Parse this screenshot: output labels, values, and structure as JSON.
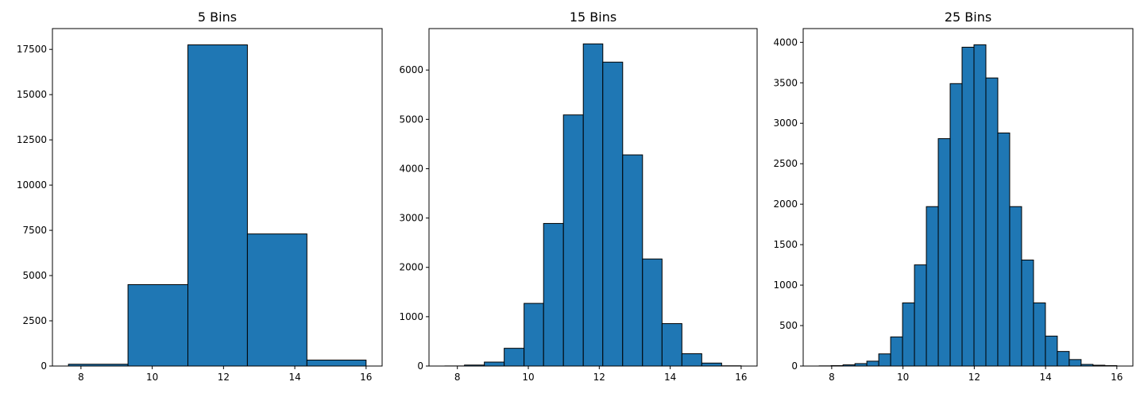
{
  "chart_data": [
    {
      "type": "bar",
      "title": "5 Bins",
      "xlabel": "",
      "ylabel": "",
      "bar_color": "#1f77b4",
      "edge_color": "#000000",
      "xlim": [
        7.2,
        16.45
      ],
      "ylim": [
        0,
        18650
      ],
      "xticks": [
        8,
        10,
        12,
        14,
        16
      ],
      "yticks": [
        0,
        2500,
        5000,
        7500,
        10000,
        12500,
        15000,
        17500
      ],
      "bin_edges": [
        7.65,
        9.32,
        11.0,
        12.67,
        14.34,
        16.0
      ],
      "values": [
        100,
        4500,
        17750,
        7300,
        330
      ]
    },
    {
      "type": "bar",
      "title": "15 Bins",
      "xlabel": "",
      "ylabel": "",
      "bar_color": "#1f77b4",
      "edge_color": "#000000",
      "xlim": [
        7.2,
        16.45
      ],
      "ylim": [
        0,
        6840
      ],
      "xticks": [
        8,
        10,
        12,
        14,
        16
      ],
      "yticks": [
        0,
        1000,
        2000,
        3000,
        4000,
        5000,
        6000
      ],
      "bin_edges": [
        7.65,
        8.2,
        8.76,
        9.32,
        9.88,
        10.43,
        10.99,
        11.55,
        12.1,
        12.66,
        13.22,
        13.77,
        14.33,
        14.89,
        15.45,
        16.0
      ],
      "values": [
        2,
        20,
        80,
        360,
        1270,
        2890,
        5090,
        6530,
        6160,
        4280,
        2170,
        860,
        250,
        60,
        5
      ]
    },
    {
      "type": "bar",
      "title": "25 Bins",
      "xlabel": "",
      "ylabel": "",
      "bar_color": "#1f77b4",
      "edge_color": "#000000",
      "xlim": [
        7.2,
        16.45
      ],
      "ylim": [
        0,
        4170
      ],
      "xticks": [
        8,
        10,
        12,
        14,
        16
      ],
      "yticks": [
        0,
        500,
        1000,
        1500,
        2000,
        2500,
        3000,
        3500,
        4000
      ],
      "bin_edges": [
        7.65,
        7.984,
        8.318,
        8.652,
        8.986,
        9.32,
        9.654,
        9.988,
        10.322,
        10.656,
        10.99,
        11.324,
        11.658,
        11.992,
        12.326,
        12.66,
        12.994,
        13.328,
        13.662,
        13.996,
        14.33,
        14.664,
        14.998,
        15.332,
        15.666,
        16.0
      ],
      "values": [
        2,
        5,
        15,
        30,
        60,
        150,
        360,
        780,
        1250,
        1970,
        2810,
        3490,
        3940,
        3970,
        3560,
        2880,
        1970,
        1310,
        780,
        370,
        180,
        80,
        20,
        10,
        5
      ]
    }
  ]
}
